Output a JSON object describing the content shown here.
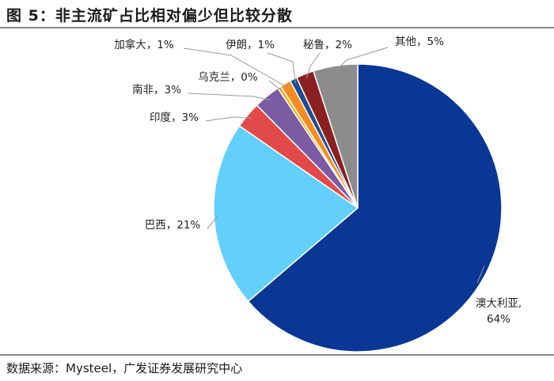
{
  "header": {
    "title": "图 5：非主流矿占比相对偏少但比较分散"
  },
  "footer": {
    "source": "数据来源：Mysteel，广发证券发展研究中心"
  },
  "colors": {
    "澳大利亚": "#0a3794",
    "巴西": "#62cffc",
    "印度": "#e24a4a",
    "南非": "#7b5ba3",
    "乌克兰": "#f0b21a",
    "加拿大": "#f58c1f",
    "伊朗": "#1e4e92",
    "秘鲁": "#8a2020",
    "其他": "#8c8c8c",
    "leader_line": "#999999"
  },
  "chart_data": {
    "type": "pie",
    "title": "",
    "slices": [
      {
        "name": "澳大利亚",
        "value": 64,
        "label": "澳大利亚,\n64%"
      },
      {
        "name": "巴西",
        "value": 21,
        "label": "巴西，21%"
      },
      {
        "name": "印度",
        "value": 3,
        "label": "印度，3%"
      },
      {
        "name": "南非",
        "value": 3,
        "label": "南非，3%"
      },
      {
        "name": "乌克兰",
        "value": 0.4,
        "label": "乌克兰，0%"
      },
      {
        "name": "加拿大",
        "value": 1.2,
        "label": "加拿大，1%"
      },
      {
        "name": "伊朗",
        "value": 0.8,
        "label": "伊朗，1%"
      },
      {
        "name": "秘鲁",
        "value": 2,
        "label": "秘鲁，2%"
      },
      {
        "name": "其他",
        "value": 5,
        "label": "其他，5%"
      }
    ],
    "start": "12 o'clock",
    "direction": "clockwise"
  }
}
